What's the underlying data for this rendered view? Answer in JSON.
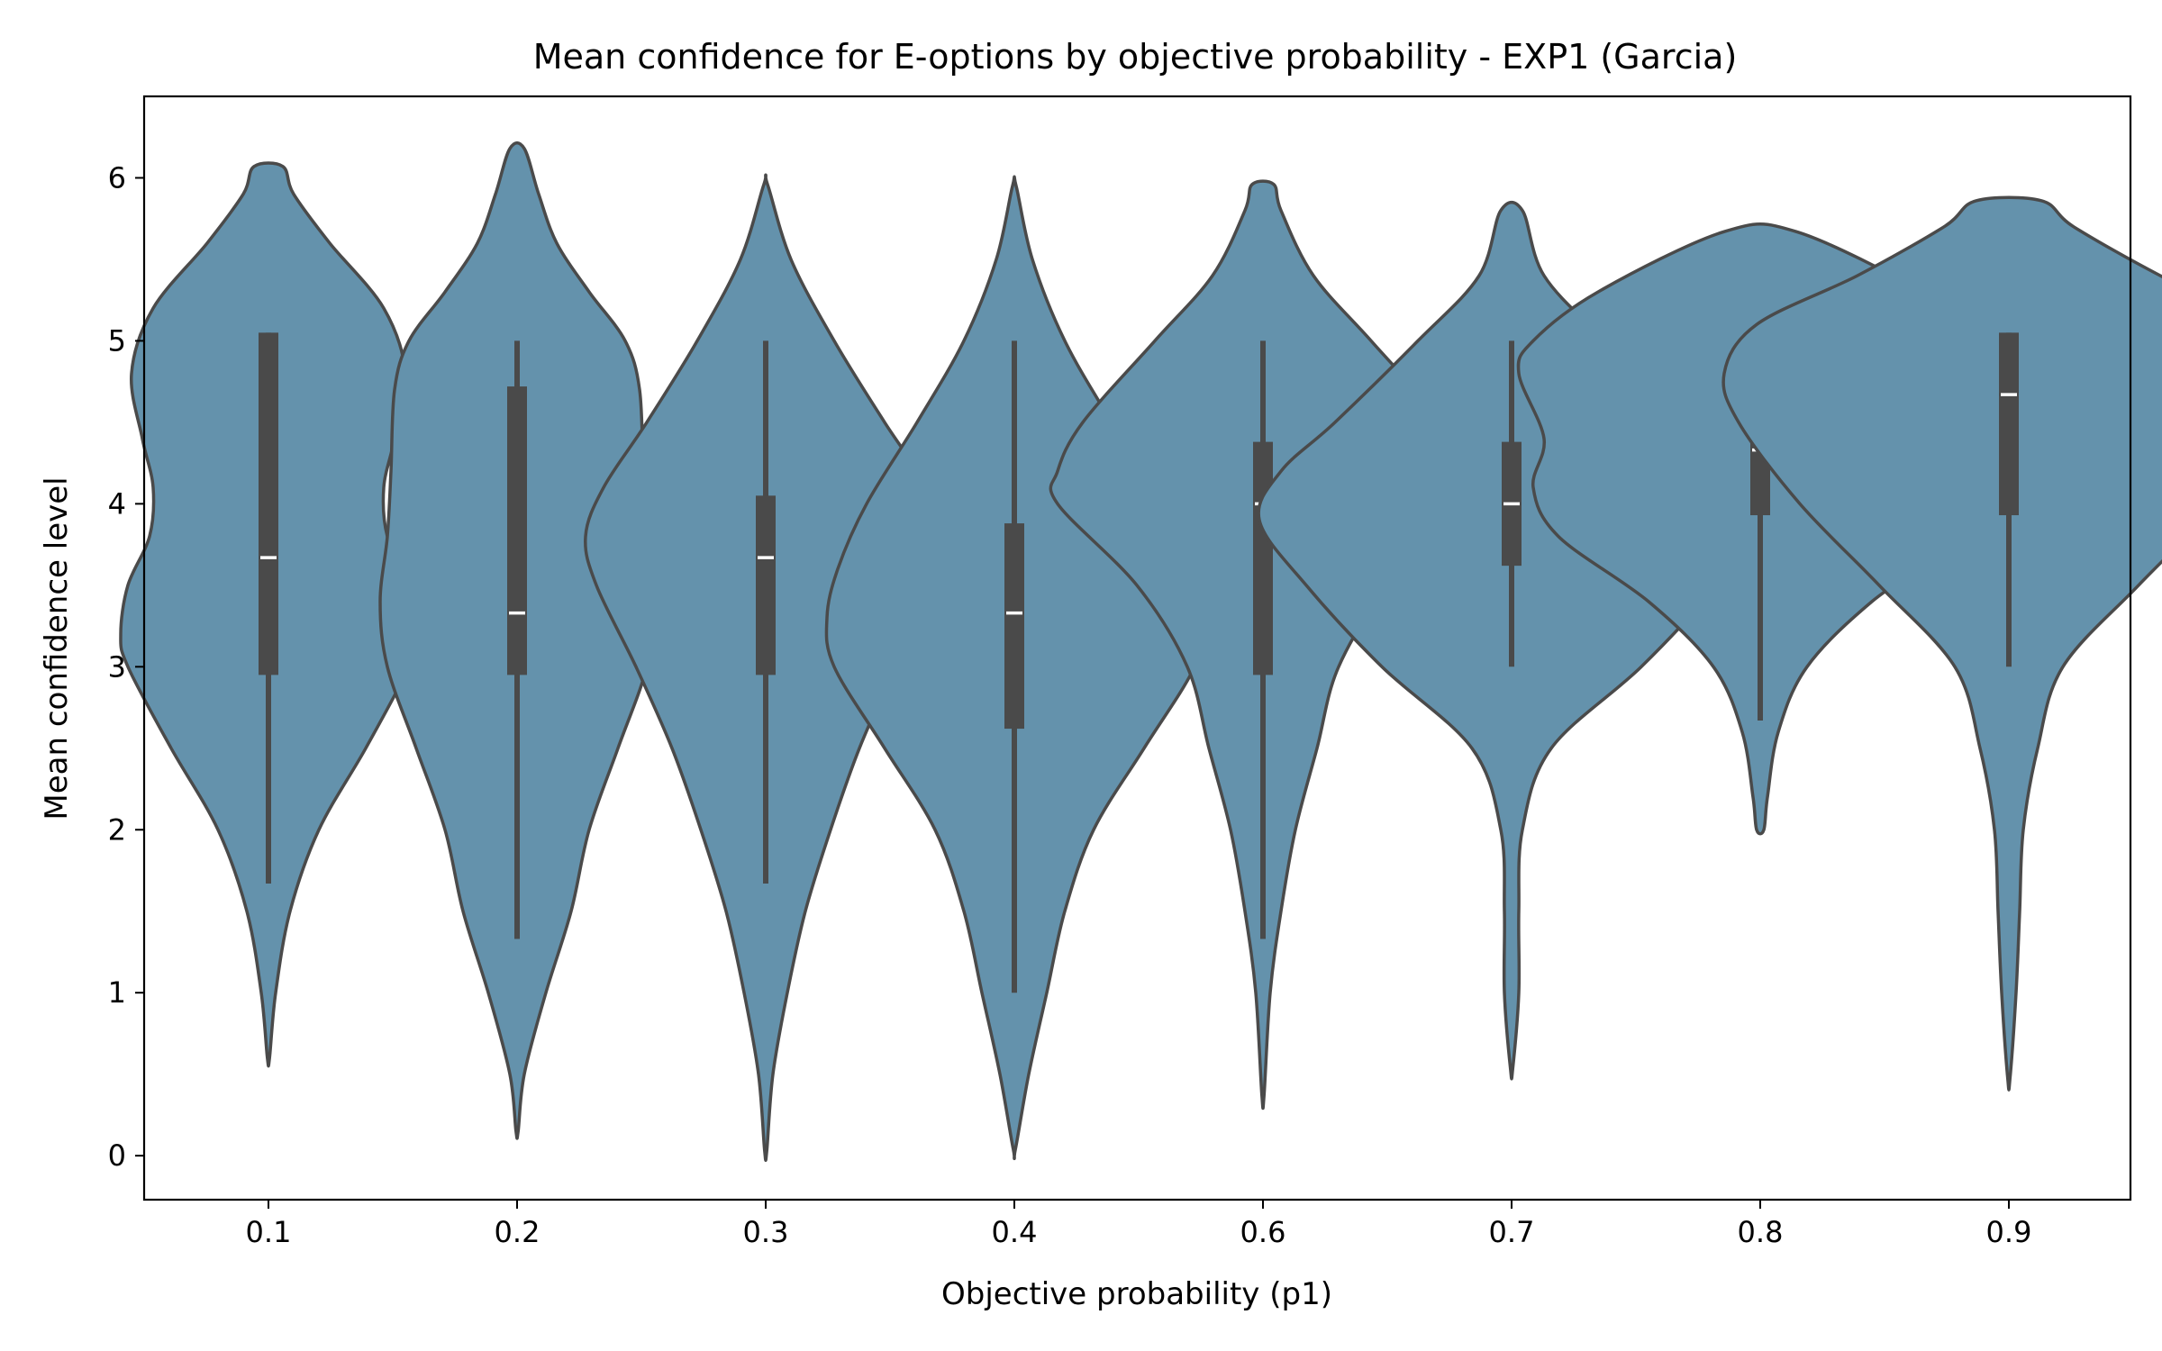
{
  "chart_data": {
    "type": "violin",
    "title": "Mean confidence for E-options by objective probability - EXP1 (Garcia)",
    "xlabel": "Objective probability (p1)",
    "ylabel": "Mean confidence level",
    "categories": [
      "0.1",
      "0.2",
      "0.3",
      "0.4",
      "0.6",
      "0.7",
      "0.8",
      "0.9"
    ],
    "ylim": [
      -0.27,
      6.5
    ],
    "yticks": [
      0,
      1,
      2,
      3,
      4,
      5,
      6
    ],
    "grid": false,
    "fill_color": "#6492ac",
    "line_color": "#4a4a4a",
    "median_color": "#ffffff",
    "series": [
      {
        "category": "0.1",
        "median": 3.67,
        "q1": 2.95,
        "q3": 5.05,
        "whisker_low": 1.67,
        "whisker_high": 5.05,
        "profile": [
          [
            0.6,
            0.003
          ],
          [
            1.0,
            0.02
          ],
          [
            1.5,
            0.06
          ],
          [
            2.0,
            0.14
          ],
          [
            2.5,
            0.27
          ],
          [
            3.0,
            0.39
          ],
          [
            3.2,
            0.41
          ],
          [
            3.5,
            0.39
          ],
          [
            3.8,
            0.33
          ],
          [
            4.1,
            0.32
          ],
          [
            4.4,
            0.35
          ],
          [
            4.8,
            0.38
          ],
          [
            5.2,
            0.32
          ],
          [
            5.6,
            0.17
          ],
          [
            5.9,
            0.07
          ],
          [
            6.07,
            0.04
          ]
        ]
      },
      {
        "category": "0.2",
        "median": 3.33,
        "q1": 2.95,
        "q3": 4.72,
        "whisker_low": 1.33,
        "whisker_high": 5.0,
        "profile": [
          [
            0.15,
            0.003
          ],
          [
            0.5,
            0.02
          ],
          [
            1.0,
            0.08
          ],
          [
            1.5,
            0.15
          ],
          [
            2.0,
            0.2
          ],
          [
            2.5,
            0.28
          ],
          [
            3.0,
            0.36
          ],
          [
            3.4,
            0.38
          ],
          [
            3.8,
            0.36
          ],
          [
            4.2,
            0.35
          ],
          [
            4.7,
            0.34
          ],
          [
            5.0,
            0.3
          ],
          [
            5.3,
            0.2
          ],
          [
            5.6,
            0.11
          ],
          [
            5.9,
            0.06
          ],
          [
            6.18,
            0.02
          ]
        ]
      },
      {
        "category": "0.3",
        "median": 3.67,
        "q1": 2.95,
        "q3": 4.05,
        "whisker_low": 1.67,
        "whisker_high": 5.0,
        "profile": [
          [
            0.03,
            0.003
          ],
          [
            0.5,
            0.02
          ],
          [
            1.0,
            0.06
          ],
          [
            1.5,
            0.11
          ],
          [
            2.0,
            0.18
          ],
          [
            2.5,
            0.26
          ],
          [
            3.0,
            0.36
          ],
          [
            3.5,
            0.47
          ],
          [
            3.8,
            0.5
          ],
          [
            4.1,
            0.45
          ],
          [
            4.5,
            0.33
          ],
          [
            5.0,
            0.19
          ],
          [
            5.5,
            0.07
          ],
          [
            5.96,
            0.005
          ]
        ]
      },
      {
        "category": "0.4",
        "median": 3.33,
        "q1": 2.62,
        "q3": 3.88,
        "whisker_low": 1.0,
        "whisker_high": 5.0,
        "profile": [
          [
            0.04,
            0.003
          ],
          [
            0.5,
            0.04
          ],
          [
            1.0,
            0.09
          ],
          [
            1.5,
            0.14
          ],
          [
            2.0,
            0.22
          ],
          [
            2.5,
            0.36
          ],
          [
            3.0,
            0.5
          ],
          [
            3.3,
            0.52
          ],
          [
            3.6,
            0.49
          ],
          [
            4.0,
            0.41
          ],
          [
            4.5,
            0.27
          ],
          [
            5.0,
            0.14
          ],
          [
            5.5,
            0.05
          ],
          [
            5.95,
            0.005
          ]
        ]
      },
      {
        "category": "0.6",
        "median": 4.0,
        "q1": 2.95,
        "q3": 4.38,
        "whisker_low": 1.33,
        "whisker_high": 5.0,
        "profile": [
          [
            0.37,
            0.003
          ],
          [
            1.0,
            0.02
          ],
          [
            1.5,
            0.05
          ],
          [
            2.0,
            0.09
          ],
          [
            2.5,
            0.15
          ],
          [
            3.0,
            0.21
          ],
          [
            3.5,
            0.35
          ],
          [
            4.0,
            0.57
          ],
          [
            4.2,
            0.57
          ],
          [
            4.5,
            0.5
          ],
          [
            5.0,
            0.3
          ],
          [
            5.4,
            0.14
          ],
          [
            5.8,
            0.05
          ],
          [
            5.96,
            0.03
          ]
        ]
      },
      {
        "category": "0.7",
        "median": 4.0,
        "q1": 3.62,
        "q3": 4.38,
        "whisker_low": 3.0,
        "whisker_high": 5.0,
        "profile": [
          [
            0.53,
            0.003
          ],
          [
            1.0,
            0.02
          ],
          [
            1.5,
            0.02
          ],
          [
            2.0,
            0.03
          ],
          [
            2.5,
            0.11
          ],
          [
            3.0,
            0.36
          ],
          [
            3.5,
            0.57
          ],
          [
            3.9,
            0.7
          ],
          [
            4.2,
            0.64
          ],
          [
            4.5,
            0.49
          ],
          [
            5.0,
            0.26
          ],
          [
            5.4,
            0.09
          ],
          [
            5.8,
            0.03
          ]
        ]
      },
      {
        "category": "0.8",
        "median": 4.33,
        "q1": 3.93,
        "q3": 5.05,
        "whisker_low": 2.67,
        "whisker_high": 5.05,
        "profile": [
          [
            2.0,
            0.01
          ],
          [
            2.2,
            0.02
          ],
          [
            2.6,
            0.05
          ],
          [
            3.0,
            0.13
          ],
          [
            3.4,
            0.31
          ],
          [
            3.8,
            0.56
          ],
          [
            4.1,
            0.63
          ],
          [
            4.4,
            0.6
          ],
          [
            4.8,
            0.67
          ],
          [
            5.0,
            0.63
          ],
          [
            5.3,
            0.45
          ],
          [
            5.67,
            0.1
          ]
        ]
      },
      {
        "category": "0.9",
        "median": 4.67,
        "q1": 3.93,
        "q3": 5.05,
        "whisker_low": 3.0,
        "whisker_high": 5.05,
        "profile": [
          [
            0.47,
            0.003
          ],
          [
            1.0,
            0.02
          ],
          [
            1.5,
            0.03
          ],
          [
            2.0,
            0.04
          ],
          [
            2.5,
            0.08
          ],
          [
            3.0,
            0.15
          ],
          [
            3.5,
            0.36
          ],
          [
            4.0,
            0.58
          ],
          [
            4.5,
            0.75
          ],
          [
            4.8,
            0.79
          ],
          [
            5.1,
            0.7
          ],
          [
            5.4,
            0.42
          ],
          [
            5.7,
            0.18
          ],
          [
            5.86,
            0.09
          ]
        ]
      }
    ]
  }
}
